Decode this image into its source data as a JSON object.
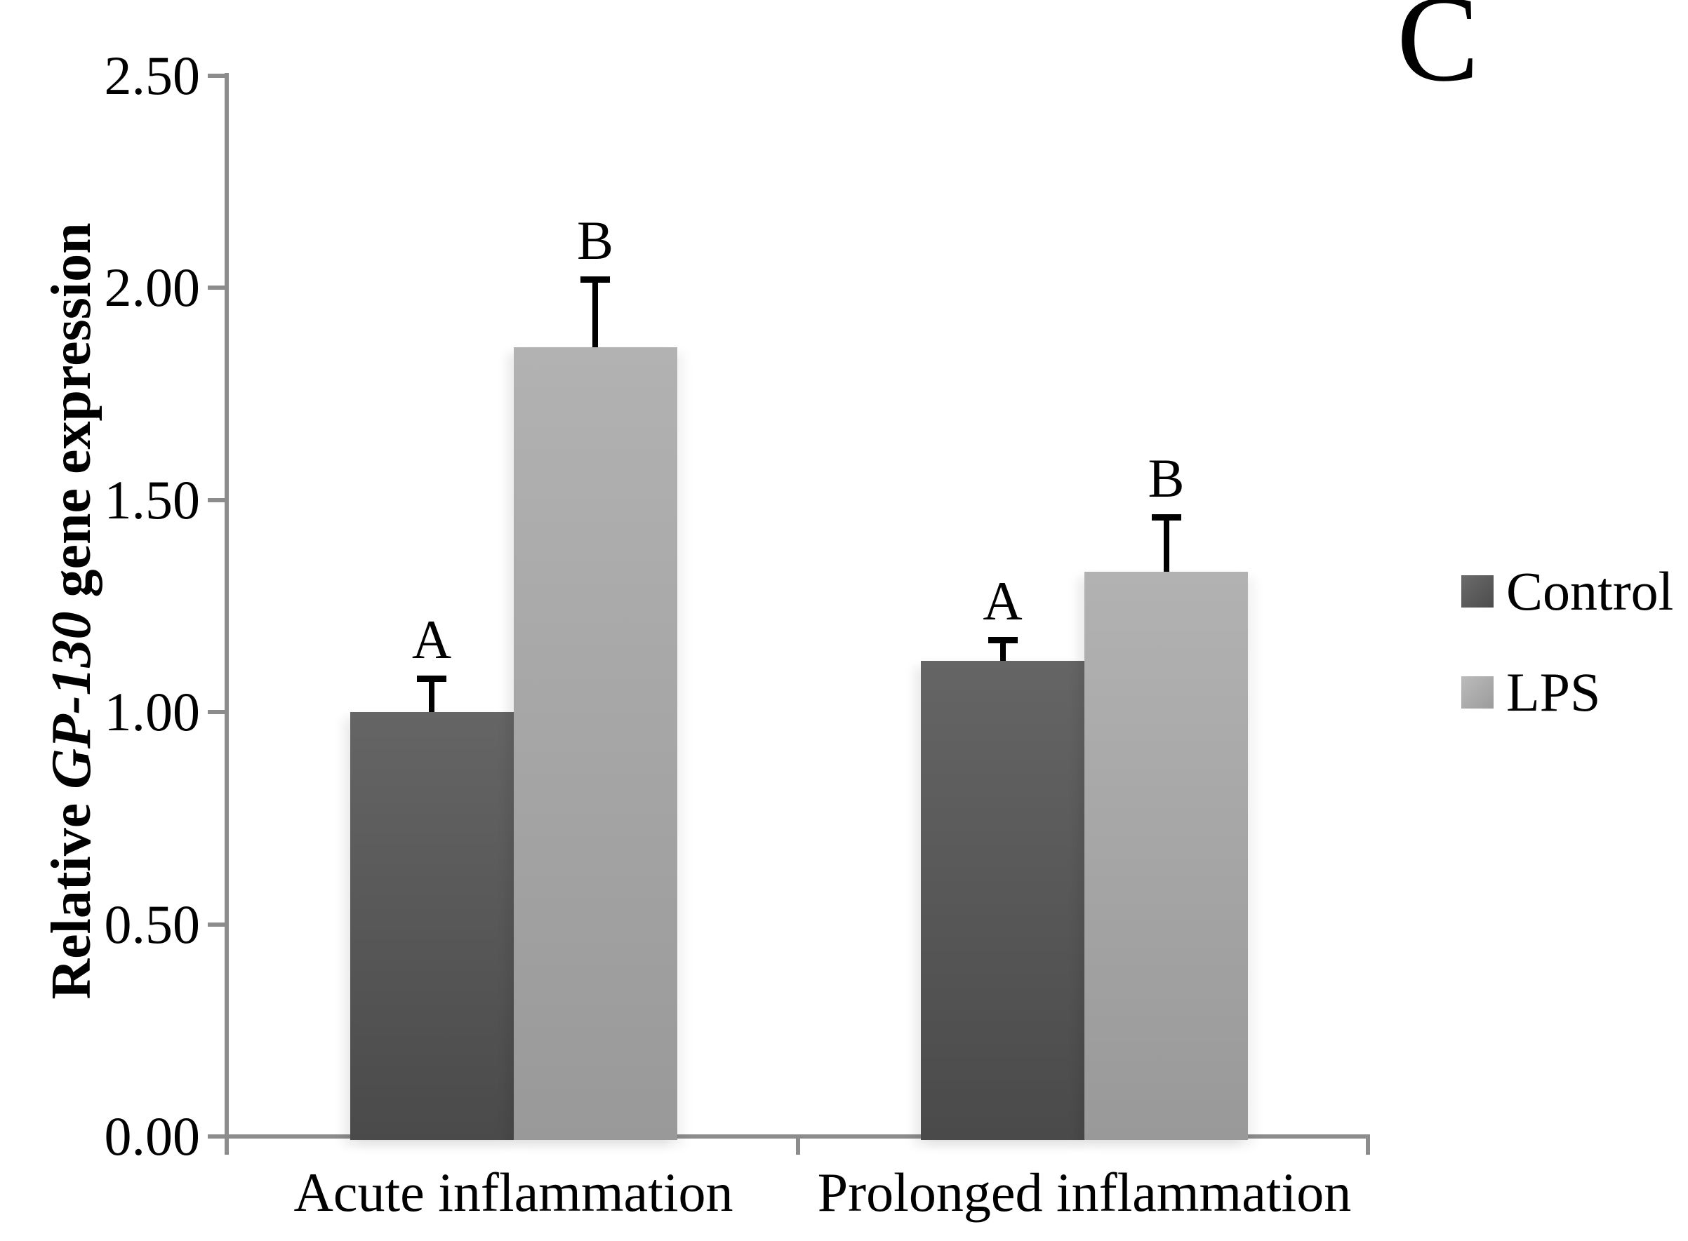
{
  "panel_label": "C",
  "y_axis_title_parts": {
    "part1": "Relative ",
    "part2": "GP-130",
    "part3": " gene expression"
  },
  "legend": {
    "items": [
      {
        "label": "Control",
        "color": "#595959"
      },
      {
        "label": "LPS",
        "color": "#a6a6a6"
      }
    ]
  },
  "chart_data": {
    "type": "bar",
    "title": "",
    "panel_label": "C",
    "xlabel": "",
    "ylabel": "Relative GP-130 gene expression",
    "ylim": [
      0.0,
      2.5
    ],
    "grid": false,
    "legend_position": "right",
    "categories": [
      "Acute inflammation",
      "Prolonged inflammation"
    ],
    "series": [
      {
        "name": "Control",
        "color": "#595959",
        "values": [
          1.0,
          1.12
        ],
        "error_plus": [
          0.08,
          0.05
        ],
        "sig_labels": [
          "A",
          "A"
        ]
      },
      {
        "name": "LPS",
        "color": "#a6a6a6",
        "values": [
          1.86,
          1.33
        ],
        "error_plus": [
          0.16,
          0.13
        ],
        "sig_labels": [
          "B",
          "B"
        ]
      }
    ],
    "yticks": [
      {
        "value": 2.5,
        "label": "2.50"
      },
      {
        "value": 2.0,
        "label": "2.00"
      },
      {
        "value": 1.5,
        "label": "1.50"
      },
      {
        "value": 1.0,
        "label": "1.00"
      },
      {
        "value": 0.5,
        "label": "0.50"
      },
      {
        "value": 0.0,
        "label": "0.00"
      }
    ]
  }
}
